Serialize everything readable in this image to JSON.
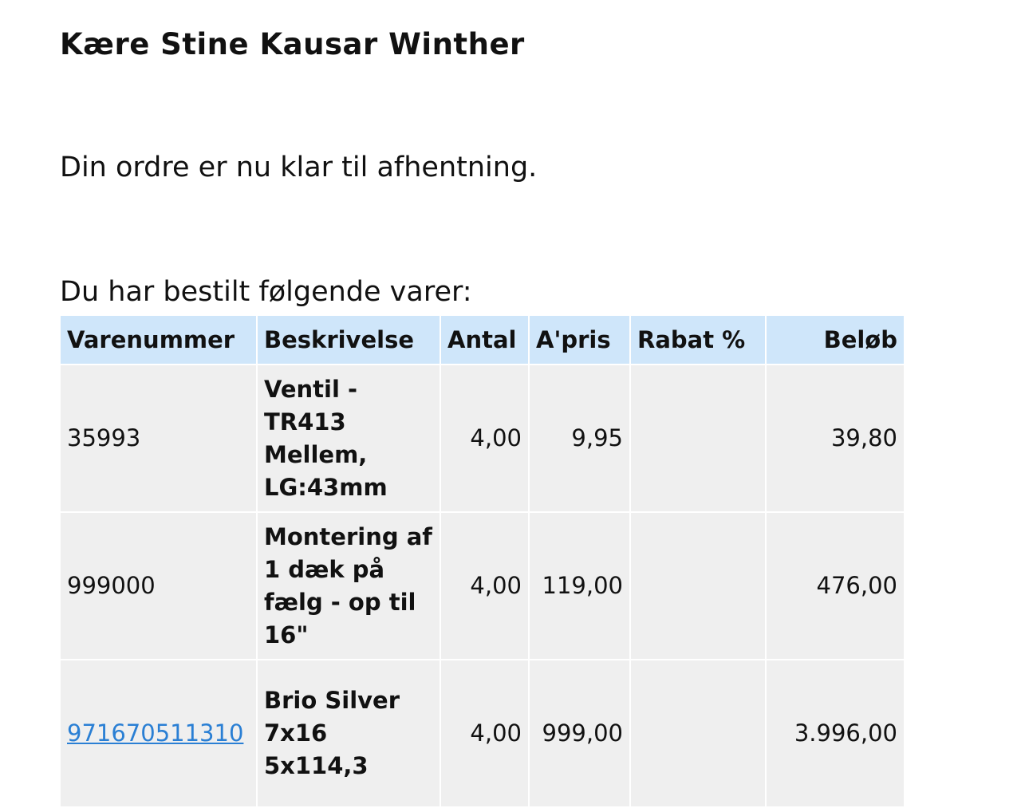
{
  "greeting": "Kære Stine Kausar Winther",
  "message": "Din ordre er nu klar til afhentning.",
  "intro": "Du har bestilt følgende varer:",
  "table": {
    "headers": [
      "Varenummer",
      "Beskrivelse",
      "Antal",
      "A'pris",
      "Rabat %",
      "Beløb"
    ],
    "header_bg": "#cfe6fa",
    "rows": [
      {
        "varenummer": "35993",
        "beskrivelse": "Ventil - TR413 Mellem, LG:43mm",
        "antal": "4,00",
        "apris": "9,95",
        "rabat": "",
        "belob": "39,80"
      },
      {
        "varenummer": "999000",
        "beskrivelse": "Montering af 1 dæk på fælg - op til 16\"",
        "antal": "4,00",
        "apris": "119,00",
        "rabat": "",
        "belob": "476,00"
      },
      {
        "varenummer": "971670511310",
        "beskrivelse": "Brio Silver 7x16 5x114,3",
        "antal": "4,00",
        "apris": "999,00",
        "rabat": "",
        "belob": "3.996,00"
      }
    ]
  }
}
